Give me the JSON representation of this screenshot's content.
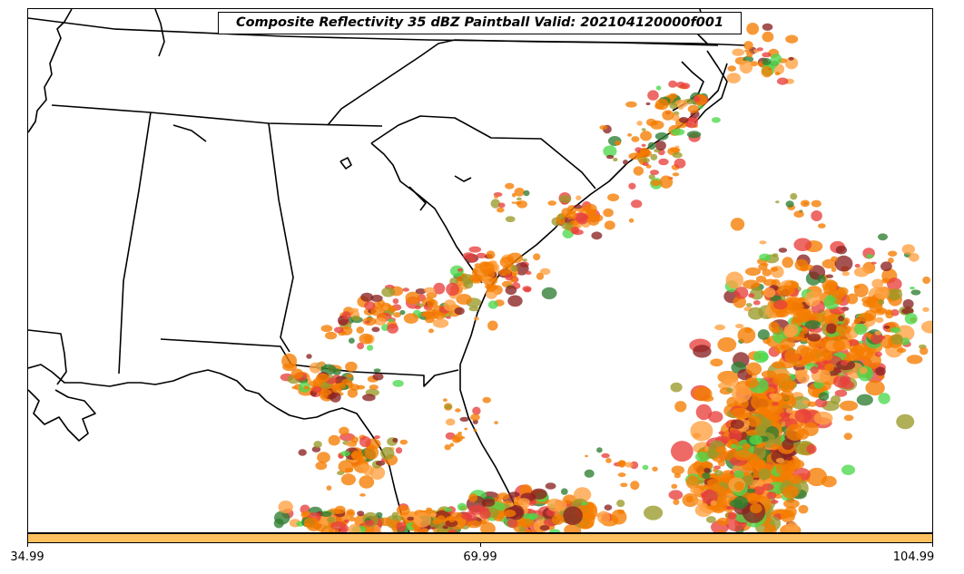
{
  "title": "Composite Reflectivity 35 dBZ Paintball Valid: 202104120000f001",
  "colorbar": {
    "color": "#ffc060",
    "min": 34.99,
    "max": 104.99,
    "ticks": [
      {
        "value": 34.99,
        "label": "34.99"
      },
      {
        "value": 69.99,
        "label": "69.99"
      },
      {
        "value": 104.99,
        "label": "104.99"
      }
    ]
  },
  "map": {
    "region": "southeastern-united-states",
    "line_color": "#000000",
    "background": "#ffffff"
  },
  "paintball_palette": [
    "#e8403c",
    "#f57c00",
    "#ffa040",
    "#8a2323",
    "#9a9a2a",
    "#2e7d32",
    "#4cd84c"
  ]
}
